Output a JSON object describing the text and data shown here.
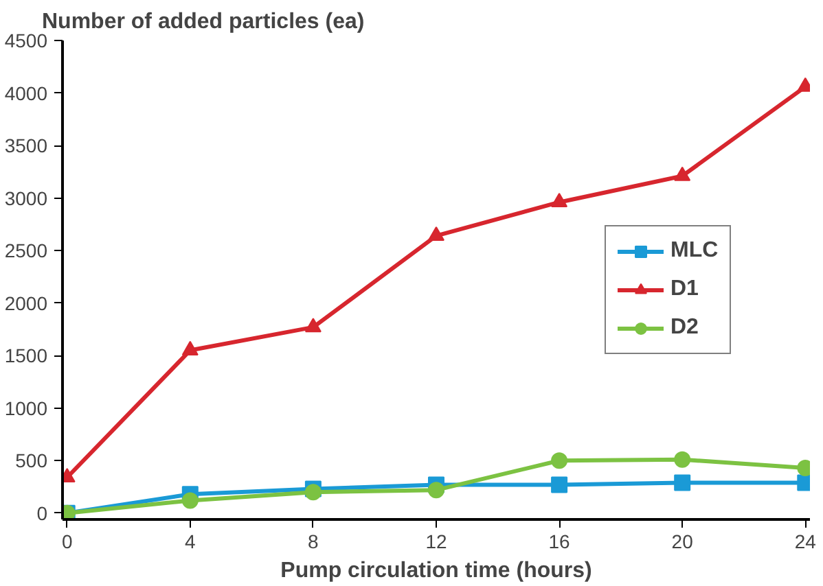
{
  "chart_data": {
    "type": "line",
    "ylabel": "Number of added particles (ea)",
    "xlabel": "Pump circulation time (hours)",
    "x": [
      0,
      4,
      8,
      12,
      16,
      20,
      24
    ],
    "series": [
      {
        "name": "MLC",
        "color": "#1a9ad6",
        "marker": "square",
        "values": [
          0,
          180,
          230,
          270,
          270,
          290,
          290
        ]
      },
      {
        "name": "D1",
        "color": "#d7262e",
        "marker": "triangle",
        "values": [
          340,
          1550,
          1770,
          2640,
          2960,
          3210,
          4060
        ]
      },
      {
        "name": "D2",
        "color": "#7cc242",
        "marker": "circle",
        "values": [
          0,
          120,
          200,
          220,
          500,
          510,
          430
        ]
      }
    ],
    "xlim": [
      -0.15,
      24.15
    ],
    "xticks": [
      0,
      4,
      8,
      12,
      16,
      20,
      24
    ],
    "ylim": [
      -60,
      4500
    ],
    "yticks": [
      0,
      500,
      1000,
      1500,
      2000,
      2500,
      3000,
      3500,
      4000,
      4500
    ],
    "grid": false,
    "legend": "right",
    "line_style": "solid"
  }
}
